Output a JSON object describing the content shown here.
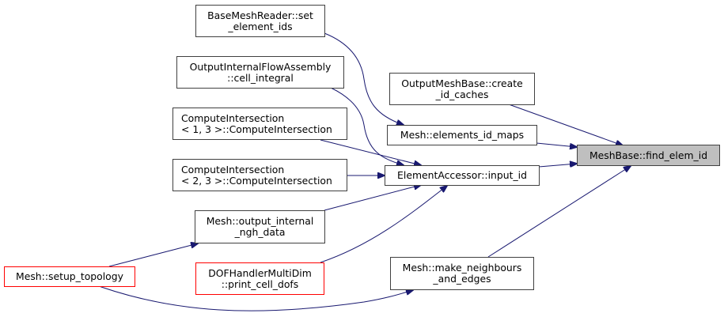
{
  "graph": {
    "nodes": {
      "base_mesh_reader": {
        "line1": "BaseMeshReader::set",
        "line2": "_element_ids"
      },
      "output_internal_flow": {
        "line1": "OutputInternalFlowAssembly",
        "line2": "::cell_integral"
      },
      "compute_intersection_13": {
        "line1": "ComputeIntersection",
        "line2": "< 1, 3 >::ComputeIntersection"
      },
      "compute_intersection_23": {
        "line1": "ComputeIntersection",
        "line2": "< 2, 3 >::ComputeIntersection"
      },
      "output_internal_ngh": {
        "line1": "Mesh::output_internal",
        "line2": "_ngh_data"
      },
      "setup_topology": {
        "line1": "Mesh::setup_topology"
      },
      "dof_handler": {
        "line1": "DOFHandlerMultiDim",
        "line2": "::print_cell_dofs"
      },
      "output_mesh_base": {
        "line1": "OutputMeshBase::create",
        "line2": "_id_caches"
      },
      "elements_id_maps": {
        "line1": "Mesh::elements_id_maps"
      },
      "element_accessor": {
        "line1": "ElementAccessor::input_id"
      },
      "make_neighbours": {
        "line1": "Mesh::make_neighbours",
        "line2": "_and_edges"
      },
      "find_elem_id": {
        "line1": "MeshBase::find_elem_id"
      }
    },
    "edges": [
      {
        "from": "base_mesh_reader",
        "to": "elements_id_maps"
      },
      {
        "from": "output_internal_flow",
        "to": "element_accessor"
      },
      {
        "from": "compute_intersection_13",
        "to": "element_accessor"
      },
      {
        "from": "compute_intersection_23",
        "to": "element_accessor"
      },
      {
        "from": "output_internal_ngh",
        "to": "element_accessor"
      },
      {
        "from": "dof_handler",
        "to": "element_accessor"
      },
      {
        "from": "setup_topology",
        "to": "output_internal_ngh"
      },
      {
        "from": "setup_topology",
        "to": "make_neighbours"
      },
      {
        "from": "output_mesh_base",
        "to": "find_elem_id"
      },
      {
        "from": "elements_id_maps",
        "to": "find_elem_id"
      },
      {
        "from": "element_accessor",
        "to": "find_elem_id"
      },
      {
        "from": "make_neighbours",
        "to": "find_elem_id"
      }
    ],
    "colors": {
      "edge": "#191970",
      "node_border": "#404040",
      "incomplete_border": "#ff0000",
      "current_fill": "#bfbfbf"
    }
  }
}
